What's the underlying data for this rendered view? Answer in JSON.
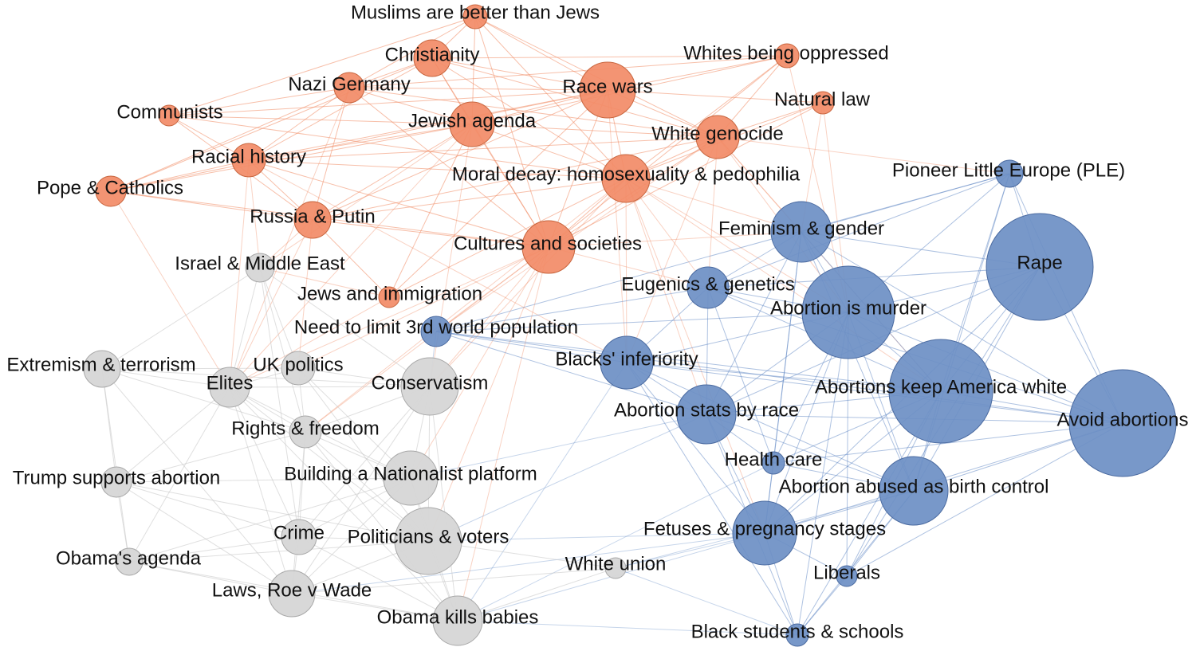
{
  "colors": {
    "orange": "#f28b67",
    "blue": "#6d8fc4",
    "gray": "#d6d6d6",
    "orange_edge": "#f08a62",
    "blue_edge": "#5d86c4",
    "gray_edge": "#c4c4c4",
    "text": "#111111"
  },
  "nodes": [
    {
      "id": "muslims",
      "label": "Muslims are better than Jews",
      "group": "orange"
    },
    {
      "id": "christianity",
      "label": "Christianity",
      "group": "orange"
    },
    {
      "id": "whites_oppressed",
      "label": "Whites being oppressed",
      "group": "orange"
    },
    {
      "id": "nazi",
      "label": "Nazi Germany",
      "group": "orange"
    },
    {
      "id": "race_wars",
      "label": "Race wars",
      "group": "orange"
    },
    {
      "id": "natural_law",
      "label": "Natural law",
      "group": "orange"
    },
    {
      "id": "communists",
      "label": "Communists",
      "group": "orange"
    },
    {
      "id": "jewish_agenda",
      "label": "Jewish agenda",
      "group": "orange"
    },
    {
      "id": "white_genocide",
      "label": "White genocide",
      "group": "orange"
    },
    {
      "id": "racial_history",
      "label": "Racial history",
      "group": "orange"
    },
    {
      "id": "moral_decay",
      "label": "Moral decay: homosexuality & pedophilia",
      "group": "orange"
    },
    {
      "id": "pope",
      "label": "Pope & Catholics",
      "group": "orange"
    },
    {
      "id": "russia",
      "label": "Russia & Putin",
      "group": "orange"
    },
    {
      "id": "cultures",
      "label": "Cultures and societies",
      "group": "orange"
    },
    {
      "id": "jews_immigration",
      "label": "Jews and immigration",
      "group": "orange"
    },
    {
      "id": "ple",
      "label": "Pioneer Little Europe (PLE)",
      "group": "blue"
    },
    {
      "id": "feminism",
      "label": "Feminism & gender",
      "group": "blue"
    },
    {
      "id": "rape",
      "label": "Rape",
      "group": "blue"
    },
    {
      "id": "eugenics",
      "label": "Eugenics & genetics",
      "group": "blue"
    },
    {
      "id": "abortion_murder",
      "label": "Abortion is murder",
      "group": "blue"
    },
    {
      "id": "third_world",
      "label": "Need to limit 3rd world population",
      "group": "blue"
    },
    {
      "id": "blacks_inferiority",
      "label": "Blacks' inferiority",
      "group": "blue"
    },
    {
      "id": "keep_white",
      "label": "Abortions keep America white",
      "group": "blue"
    },
    {
      "id": "avoid",
      "label": "Avoid abortions",
      "group": "blue"
    },
    {
      "id": "stats_race",
      "label": "Abortion stats by race",
      "group": "blue"
    },
    {
      "id": "health_care",
      "label": "Health care",
      "group": "blue"
    },
    {
      "id": "birth_control",
      "label": "Abortion abused as birth control",
      "group": "blue"
    },
    {
      "id": "fetuses",
      "label": "Fetuses & pregnancy stages",
      "group": "blue"
    },
    {
      "id": "liberals",
      "label": "Liberals",
      "group": "blue"
    },
    {
      "id": "black_students",
      "label": "Black students & schools",
      "group": "blue"
    },
    {
      "id": "israel",
      "label": "Israel & Middle East",
      "group": "gray"
    },
    {
      "id": "extremism",
      "label": "Extremism & terrorism",
      "group": "gray"
    },
    {
      "id": "elites",
      "label": "Elites",
      "group": "gray"
    },
    {
      "id": "uk_politics",
      "label": "UK politics",
      "group": "gray"
    },
    {
      "id": "conservatism",
      "label": "Conservatism",
      "group": "gray"
    },
    {
      "id": "rights",
      "label": "Rights & freedom",
      "group": "gray"
    },
    {
      "id": "trump",
      "label": "Trump supports abortion",
      "group": "gray"
    },
    {
      "id": "nationalist",
      "label": "Building a Nationalist platform",
      "group": "gray"
    },
    {
      "id": "crime",
      "label": "Crime",
      "group": "gray"
    },
    {
      "id": "politicians",
      "label": "Politicians & voters",
      "group": "gray"
    },
    {
      "id": "obama_agenda",
      "label": "Obama's agenda",
      "group": "gray"
    },
    {
      "id": "white_union",
      "label": "White union",
      "group": "gray"
    },
    {
      "id": "laws",
      "label": "Laws, Roe v Wade",
      "group": "gray"
    },
    {
      "id": "obama_kills",
      "label": "Obama kills babies",
      "group": "gray"
    }
  ],
  "edges": [
    [
      "muslims",
      "christianity"
    ],
    [
      "muslims",
      "race_wars"
    ],
    [
      "muslims",
      "jewish_agenda"
    ],
    [
      "muslims",
      "nazi"
    ],
    [
      "muslims",
      "white_genocide"
    ],
    [
      "muslims",
      "moral_decay"
    ],
    [
      "muslims",
      "cultures"
    ],
    [
      "muslims",
      "communists"
    ],
    [
      "christianity",
      "nazi"
    ],
    [
      "christianity",
      "race_wars"
    ],
    [
      "christianity",
      "jewish_agenda"
    ],
    [
      "christianity",
      "moral_decay"
    ],
    [
      "christianity",
      "cultures"
    ],
    [
      "christianity",
      "white_genocide"
    ],
    [
      "christianity",
      "pope"
    ],
    [
      "christianity",
      "racial_history"
    ],
    [
      "christianity",
      "whites_oppressed"
    ],
    [
      "whites_oppressed",
      "race_wars"
    ],
    [
      "whites_oppressed",
      "white_genocide"
    ],
    [
      "whites_oppressed",
      "jewish_agenda"
    ],
    [
      "whites_oppressed",
      "moral_decay"
    ],
    [
      "whites_oppressed",
      "cultures"
    ],
    [
      "whites_oppressed",
      "nazi"
    ],
    [
      "whites_oppressed",
      "abortion_murder"
    ],
    [
      "nazi",
      "race_wars"
    ],
    [
      "nazi",
      "jewish_agenda"
    ],
    [
      "nazi",
      "racial_history"
    ],
    [
      "nazi",
      "communists"
    ],
    [
      "nazi",
      "russia"
    ],
    [
      "nazi",
      "cultures"
    ],
    [
      "nazi",
      "white_genocide"
    ],
    [
      "nazi",
      "pope"
    ],
    [
      "nazi",
      "elites"
    ],
    [
      "race_wars",
      "jewish_agenda"
    ],
    [
      "race_wars",
      "white_genocide"
    ],
    [
      "race_wars",
      "moral_decay"
    ],
    [
      "race_wars",
      "cultures"
    ],
    [
      "race_wars",
      "racial_history"
    ],
    [
      "race_wars",
      "natural_law"
    ],
    [
      "race_wars",
      "russia"
    ],
    [
      "race_wars",
      "jews_immigration"
    ],
    [
      "race_wars",
      "communists"
    ],
    [
      "race_wars",
      "blacks_inferiority"
    ],
    [
      "race_wars",
      "pope"
    ],
    [
      "natural_law",
      "white_genocide"
    ],
    [
      "natural_law",
      "moral_decay"
    ],
    [
      "natural_law",
      "feminism"
    ],
    [
      "natural_law",
      "abortion_murder"
    ],
    [
      "natural_law",
      "cultures"
    ],
    [
      "communists",
      "jewish_agenda"
    ],
    [
      "communists",
      "racial_history"
    ],
    [
      "communists",
      "russia"
    ],
    [
      "communists",
      "moral_decay"
    ],
    [
      "jewish_agenda",
      "white_genocide"
    ],
    [
      "jewish_agenda",
      "moral_decay"
    ],
    [
      "jewish_agenda",
      "cultures"
    ],
    [
      "jewish_agenda",
      "racial_history"
    ],
    [
      "jewish_agenda",
      "russia"
    ],
    [
      "jewish_agenda",
      "pope"
    ],
    [
      "jewish_agenda",
      "jews_immigration"
    ],
    [
      "jewish_agenda",
      "israel"
    ],
    [
      "jewish_agenda",
      "elites"
    ],
    [
      "jewish_agenda",
      "conservatism"
    ],
    [
      "white_genocide",
      "moral_decay"
    ],
    [
      "white_genocide",
      "cultures"
    ],
    [
      "white_genocide",
      "feminism"
    ],
    [
      "white_genocide",
      "abortion_murder"
    ],
    [
      "white_genocide",
      "keep_white"
    ],
    [
      "white_genocide",
      "eugenics"
    ],
    [
      "white_genocide",
      "blacks_inferiority"
    ],
    [
      "white_genocide",
      "third_world"
    ],
    [
      "white_genocide",
      "ple"
    ],
    [
      "white_genocide",
      "racial_history"
    ],
    [
      "white_genocide",
      "russia"
    ],
    [
      "racial_history",
      "moral_decay"
    ],
    [
      "racial_history",
      "cultures"
    ],
    [
      "racial_history",
      "russia"
    ],
    [
      "racial_history",
      "pope"
    ],
    [
      "racial_history",
      "elites"
    ],
    [
      "racial_history",
      "blacks_inferiority"
    ],
    [
      "racial_history",
      "israel"
    ],
    [
      "moral_decay",
      "cultures"
    ],
    [
      "moral_decay",
      "feminism"
    ],
    [
      "moral_decay",
      "abortion_murder"
    ],
    [
      "moral_decay",
      "eugenics"
    ],
    [
      "moral_decay",
      "russia"
    ],
    [
      "moral_decay",
      "jews_immigration"
    ],
    [
      "moral_decay",
      "rights"
    ],
    [
      "moral_decay",
      "conservatism"
    ],
    [
      "moral_decay",
      "blacks_inferiority"
    ],
    [
      "moral_decay",
      "keep_white"
    ],
    [
      "moral_decay",
      "fetuses"
    ],
    [
      "moral_decay",
      "stats_race"
    ],
    [
      "pope",
      "russia"
    ],
    [
      "pope",
      "cultures"
    ],
    [
      "pope",
      "elites"
    ],
    [
      "russia",
      "cultures"
    ],
    [
      "russia",
      "israel"
    ],
    [
      "russia",
      "elites"
    ],
    [
      "russia",
      "uk_politics"
    ],
    [
      "russia",
      "jews_immigration"
    ],
    [
      "cultures",
      "third_world"
    ],
    [
      "cultures",
      "conservatism"
    ],
    [
      "cultures",
      "rights"
    ],
    [
      "cultures",
      "nationalist"
    ],
    [
      "cultures",
      "politicians"
    ],
    [
      "cultures",
      "eugenics"
    ],
    [
      "cultures",
      "feminism"
    ],
    [
      "cultures",
      "elites"
    ],
    [
      "cultures",
      "uk_politics"
    ],
    [
      "cultures",
      "obama_kills"
    ],
    [
      "jews_immigration",
      "israel"
    ],
    [
      "jews_immigration",
      "elites"
    ],
    [
      "ple",
      "rape"
    ],
    [
      "ple",
      "feminism"
    ],
    [
      "ple",
      "keep_white"
    ],
    [
      "ple",
      "avoid"
    ],
    [
      "ple",
      "third_world"
    ],
    [
      "ple",
      "birth_control"
    ],
    [
      "ple",
      "abortion_murder"
    ],
    [
      "ple",
      "eugenics"
    ],
    [
      "feminism",
      "rape"
    ],
    [
      "feminism",
      "abortion_murder"
    ],
    [
      "feminism",
      "eugenics"
    ],
    [
      "feminism",
      "keep_white"
    ],
    [
      "feminism",
      "avoid"
    ],
    [
      "feminism",
      "birth_control"
    ],
    [
      "feminism",
      "fetuses"
    ],
    [
      "feminism",
      "stats_race"
    ],
    [
      "feminism",
      "health_care"
    ],
    [
      "rape",
      "abortion_murder"
    ],
    [
      "rape",
      "keep_white"
    ],
    [
      "rape",
      "avoid"
    ],
    [
      "rape",
      "birth_control"
    ],
    [
      "rape",
      "fetuses"
    ],
    [
      "rape",
      "stats_race"
    ],
    [
      "rape",
      "eugenics"
    ],
    [
      "rape",
      "liberals"
    ],
    [
      "eugenics",
      "abortion_murder"
    ],
    [
      "eugenics",
      "keep_white"
    ],
    [
      "eugenics",
      "blacks_inferiority"
    ],
    [
      "eugenics",
      "stats_race"
    ],
    [
      "eugenics",
      "third_world"
    ],
    [
      "eugenics",
      "avoid"
    ],
    [
      "eugenics",
      "health_care"
    ],
    [
      "abortion_murder",
      "keep_white"
    ],
    [
      "abortion_murder",
      "avoid"
    ],
    [
      "abortion_murder",
      "birth_control"
    ],
    [
      "abortion_murder",
      "fetuses"
    ],
    [
      "abortion_murder",
      "stats_race"
    ],
    [
      "abortion_murder",
      "health_care"
    ],
    [
      "abortion_murder",
      "liberals"
    ],
    [
      "abortion_murder",
      "black_students"
    ],
    [
      "abortion_murder",
      "third_world"
    ],
    [
      "abortion_murder",
      "blacks_inferiority"
    ],
    [
      "third_world",
      "blacks_inferiority"
    ],
    [
      "third_world",
      "keep_white"
    ],
    [
      "third_world",
      "stats_race"
    ],
    [
      "third_world",
      "conservatism"
    ],
    [
      "third_world",
      "avoid"
    ],
    [
      "blacks_inferiority",
      "stats_race"
    ],
    [
      "blacks_inferiority",
      "keep_white"
    ],
    [
      "blacks_inferiority",
      "black_students"
    ],
    [
      "blacks_inferiority",
      "fetuses"
    ],
    [
      "blacks_inferiority",
      "avoid"
    ],
    [
      "blacks_inferiority",
      "birth_control"
    ],
    [
      "blacks_inferiority",
      "obama_kills"
    ],
    [
      "keep_white",
      "avoid"
    ],
    [
      "keep_white",
      "birth_control"
    ],
    [
      "keep_white",
      "fetuses"
    ],
    [
      "keep_white",
      "stats_race"
    ],
    [
      "keep_white",
      "health_care"
    ],
    [
      "keep_white",
      "liberals"
    ],
    [
      "keep_white",
      "black_students"
    ],
    [
      "avoid",
      "birth_control"
    ],
    [
      "avoid",
      "fetuses"
    ],
    [
      "avoid",
      "stats_race"
    ],
    [
      "avoid",
      "liberals"
    ],
    [
      "avoid",
      "health_care"
    ],
    [
      "stats_race",
      "birth_control"
    ],
    [
      "stats_race",
      "fetuses"
    ],
    [
      "stats_race",
      "health_care"
    ],
    [
      "stats_race",
      "black_students"
    ],
    [
      "stats_race",
      "nationalist"
    ],
    [
      "stats_race",
      "politicians"
    ],
    [
      "health_care",
      "birth_control"
    ],
    [
      "health_care",
      "fetuses"
    ],
    [
      "health_care",
      "obama_kills"
    ],
    [
      "birth_control",
      "fetuses"
    ],
    [
      "birth_control",
      "liberals"
    ],
    [
      "birth_control",
      "black_students"
    ],
    [
      "birth_control",
      "white_union"
    ],
    [
      "fetuses",
      "liberals"
    ],
    [
      "fetuses",
      "black_students"
    ],
    [
      "fetuses",
      "obama_kills"
    ],
    [
      "fetuses",
      "white_union"
    ],
    [
      "fetuses",
      "politicians"
    ],
    [
      "fetuses",
      "laws"
    ],
    [
      "liberals",
      "black_students"
    ],
    [
      "black_students",
      "obama_kills"
    ],
    [
      "black_students",
      "white_union"
    ],
    [
      "israel",
      "elites"
    ],
    [
      "israel",
      "uk_politics"
    ],
    [
      "israel",
      "rights"
    ],
    [
      "israel",
      "extremism"
    ],
    [
      "israel",
      "conservatism"
    ],
    [
      "israel",
      "crime"
    ],
    [
      "extremism",
      "elites"
    ],
    [
      "extremism",
      "uk_politics"
    ],
    [
      "extremism",
      "rights"
    ],
    [
      "extremism",
      "trump"
    ],
    [
      "extremism",
      "obama_agenda"
    ],
    [
      "extremism",
      "conservatism"
    ],
    [
      "extremism",
      "laws"
    ],
    [
      "elites",
      "uk_politics"
    ],
    [
      "elites",
      "conservatism"
    ],
    [
      "elites",
      "rights"
    ],
    [
      "elites",
      "trump"
    ],
    [
      "elites",
      "nationalist"
    ],
    [
      "elites",
      "crime"
    ],
    [
      "elites",
      "politicians"
    ],
    [
      "elites",
      "obama_agenda"
    ],
    [
      "elites",
      "laws"
    ],
    [
      "elites",
      "obama_kills"
    ],
    [
      "uk_politics",
      "conservatism"
    ],
    [
      "uk_politics",
      "rights"
    ],
    [
      "uk_politics",
      "nationalist"
    ],
    [
      "uk_politics",
      "politicians"
    ],
    [
      "conservatism",
      "rights"
    ],
    [
      "conservatism",
      "nationalist"
    ],
    [
      "conservatism",
      "politicians"
    ],
    [
      "conservatism",
      "crime"
    ],
    [
      "conservatism",
      "obama_kills"
    ],
    [
      "conservatism",
      "laws"
    ],
    [
      "rights",
      "nationalist"
    ],
    [
      "rights",
      "crime"
    ],
    [
      "rights",
      "politicians"
    ],
    [
      "rights",
      "laws"
    ],
    [
      "rights",
      "trump"
    ],
    [
      "rights",
      "obama_kills"
    ],
    [
      "trump",
      "nationalist"
    ],
    [
      "trump",
      "obama_agenda"
    ],
    [
      "trump",
      "laws"
    ],
    [
      "trump",
      "politicians"
    ],
    [
      "trump",
      "crime"
    ],
    [
      "nationalist",
      "crime"
    ],
    [
      "nationalist",
      "politicians"
    ],
    [
      "nationalist",
      "laws"
    ],
    [
      "nationalist",
      "obama_kills"
    ],
    [
      "nationalist",
      "obama_agenda"
    ],
    [
      "crime",
      "politicians"
    ],
    [
      "crime",
      "laws"
    ],
    [
      "crime",
      "obama_agenda"
    ],
    [
      "crime",
      "obama_kills"
    ],
    [
      "politicians",
      "laws"
    ],
    [
      "politicians",
      "obama_kills"
    ],
    [
      "politicians",
      "obama_agenda"
    ],
    [
      "politicians",
      "white_union"
    ],
    [
      "obama_agenda",
      "laws"
    ],
    [
      "obama_agenda",
      "obama_kills"
    ],
    [
      "laws",
      "obama_kills"
    ],
    [
      "laws",
      "white_union"
    ],
    [
      "obama_kills",
      "white_union"
    ]
  ]
}
